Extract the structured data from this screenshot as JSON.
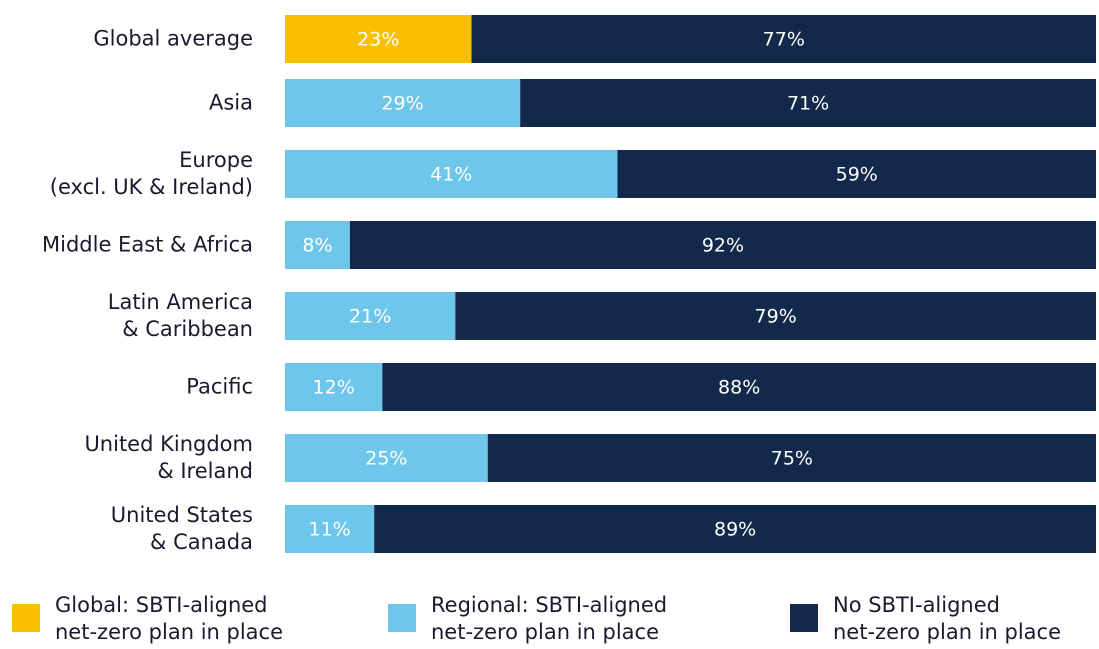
{
  "chart_data": {
    "type": "stacked-bar",
    "categories": [
      "Global average",
      "Asia",
      "Europe\n(excl. UK & Ireland)",
      "Middle East & Africa",
      "Latin America\n& Caribbean",
      "Pacific",
      "United Kingdom\n& Ireland",
      "United States\n& Canada"
    ],
    "series": [
      {
        "name": "Global: SBTI-aligned\nnet-zero plan in place",
        "color": "#f9c000",
        "values": [
          23,
          null,
          null,
          null,
          null,
          null,
          null,
          null
        ],
        "value_labels": [
          "23%",
          null,
          null,
          null,
          null,
          null,
          null,
          null
        ]
      },
      {
        "name": "Regional: SBTI-aligned\nnet-zero plan in place",
        "color": "#6ec6ea",
        "values": [
          null,
          29,
          41,
          8,
          21,
          12,
          25,
          11
        ],
        "value_labels": [
          null,
          "29%",
          "41%",
          "8%",
          "21%",
          "12%",
          "25%",
          "11%"
        ]
      },
      {
        "name": "No SBTI-aligned\nnet-zero plan in place",
        "color": "#13294b",
        "values": [
          77,
          71,
          59,
          92,
          79,
          88,
          75,
          89
        ],
        "value_labels": [
          "77%",
          "71%",
          "59%",
          "92%",
          "79%",
          "88%",
          "75%",
          "89%"
        ]
      }
    ],
    "xlim": [
      0,
      100
    ]
  }
}
